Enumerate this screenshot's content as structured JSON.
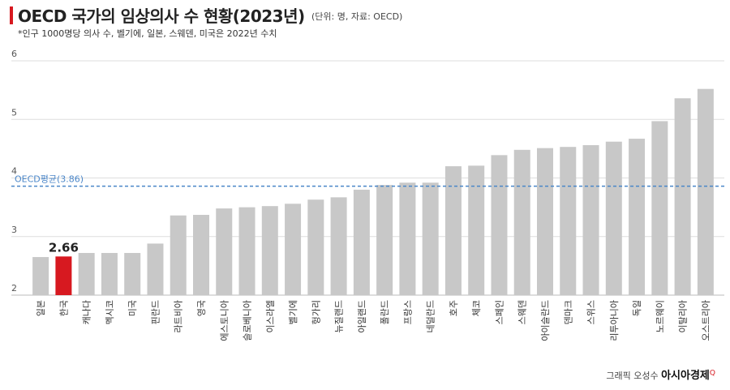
{
  "title": "OECD 국가의 임상의사 수 현황(2023년)",
  "unit_note": "(단위: 명, 자료: OECD)",
  "subtitle": "*인구 1000명당 의사 수, 벨기에, 일본, 스웨덴, 미국은 2022년 수치",
  "credit": {
    "prefix": "그래픽 오성수",
    "brand": "아시아경제",
    "mark": "Q"
  },
  "colors": {
    "bar": "#c8c8c8",
    "highlight": "#d71920",
    "average_line": "#4a86c8",
    "grid": "#dddddd"
  },
  "chart_data": {
    "type": "bar",
    "categories": [
      "일본",
      "한국",
      "캐나다",
      "멕시코",
      "미국",
      "핀란드",
      "라트비아",
      "영국",
      "에스토니아",
      "슬로베니아",
      "이스라엘",
      "벨기에",
      "헝가리",
      "뉴질랜드",
      "아일랜드",
      "폴란드",
      "프랑스",
      "네덜란드",
      "호주",
      "체코",
      "스페인",
      "스웨덴",
      "아이슬란드",
      "덴마크",
      "스위스",
      "리투아니아",
      "독일",
      "노르웨이",
      "이탈리아",
      "오스트리아"
    ],
    "values": [
      2.65,
      2.66,
      2.72,
      2.72,
      2.72,
      2.88,
      3.36,
      3.37,
      3.48,
      3.5,
      3.52,
      3.56,
      3.63,
      3.67,
      3.8,
      3.88,
      3.92,
      3.92,
      4.2,
      4.21,
      4.39,
      4.48,
      4.51,
      4.53,
      4.56,
      4.62,
      4.67,
      4.97,
      5.36,
      5.52
    ],
    "highlight_index": 1,
    "highlight_label": "2.66",
    "average": {
      "label": "OECD평균(3.86)",
      "value": 3.86
    },
    "ylim": [
      2,
      6
    ],
    "yticks": [
      2,
      3,
      4,
      5,
      6
    ],
    "ytick_labels": [
      "2",
      "3",
      "4",
      "5",
      "6"
    ],
    "grid": true,
    "xlabel": "",
    "ylabel": ""
  }
}
